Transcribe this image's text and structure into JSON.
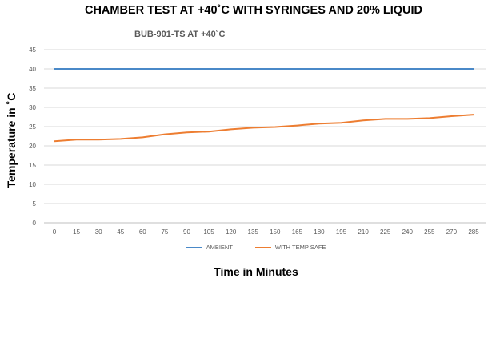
{
  "chart_data": {
    "type": "line",
    "title": "CHAMBER TEST AT +40˚C WITH SYRINGES AND 20% LIQUID",
    "subtitle": "BUB-901-TS AT +40˚C",
    "xlabel": "Time in Minutes",
    "ylabel": "Temperature in ˚C",
    "ylim": [
      0,
      45
    ],
    "yticks": [
      0,
      5,
      10,
      15,
      20,
      25,
      30,
      35,
      40,
      45
    ],
    "categories": [
      "0",
      "15",
      "30",
      "45",
      "60",
      "75",
      "90",
      "105",
      "120",
      "135",
      "150",
      "165",
      "180",
      "195",
      "210",
      "225",
      "240",
      "255",
      "270",
      "285"
    ],
    "grid": "horizontal",
    "legend_position": "bottom",
    "series": [
      {
        "name": "AMBIENT",
        "color": "#4a89c8",
        "values": [
          40,
          40,
          40,
          40,
          40,
          40,
          40,
          40,
          40,
          40,
          40,
          40,
          40,
          40,
          40,
          40,
          40,
          40,
          40,
          40
        ]
      },
      {
        "name": "WITH TEMP SAFE",
        "color": "#ed7d31",
        "values": [
          21.2,
          21.6,
          21.6,
          21.8,
          22.2,
          23.0,
          23.5,
          23.7,
          24.3,
          24.7,
          24.9,
          25.3,
          25.8,
          26.0,
          26.6,
          27.0,
          27.0,
          27.2,
          27.7,
          28.1
        ]
      }
    ]
  }
}
